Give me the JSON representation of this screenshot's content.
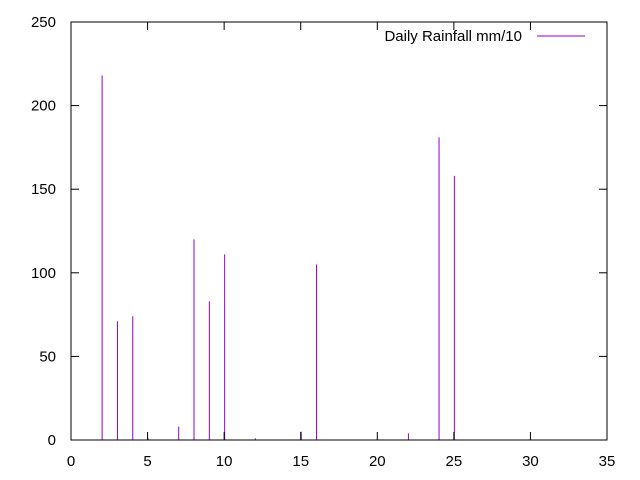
{
  "chart_data": {
    "type": "impulse",
    "legend_position": "top-right",
    "grid": false,
    "xlim": [
      0,
      35
    ],
    "ylim": [
      0,
      250
    ],
    "xticks": [
      0,
      5,
      10,
      15,
      20,
      25,
      30,
      35
    ],
    "yticks": [
      0,
      50,
      100,
      150,
      200,
      250
    ],
    "series": [
      {
        "name": "Daily Rainfall mm/10",
        "color": "#9400d3",
        "points": [
          {
            "x": 2,
            "y": 218
          },
          {
            "x": 3,
            "y": 71
          },
          {
            "x": 4,
            "y": 74
          },
          {
            "x": 5,
            "y": 1
          },
          {
            "x": 7,
            "y": 8
          },
          {
            "x": 8,
            "y": 120
          },
          {
            "x": 9,
            "y": 83
          },
          {
            "x": 10,
            "y": 111
          },
          {
            "x": 12,
            "y": 1
          },
          {
            "x": 15,
            "y": 5
          },
          {
            "x": 16,
            "y": 105
          },
          {
            "x": 22,
            "y": 4
          },
          {
            "x": 24,
            "y": 181
          },
          {
            "x": 25,
            "y": 158
          }
        ]
      }
    ]
  }
}
